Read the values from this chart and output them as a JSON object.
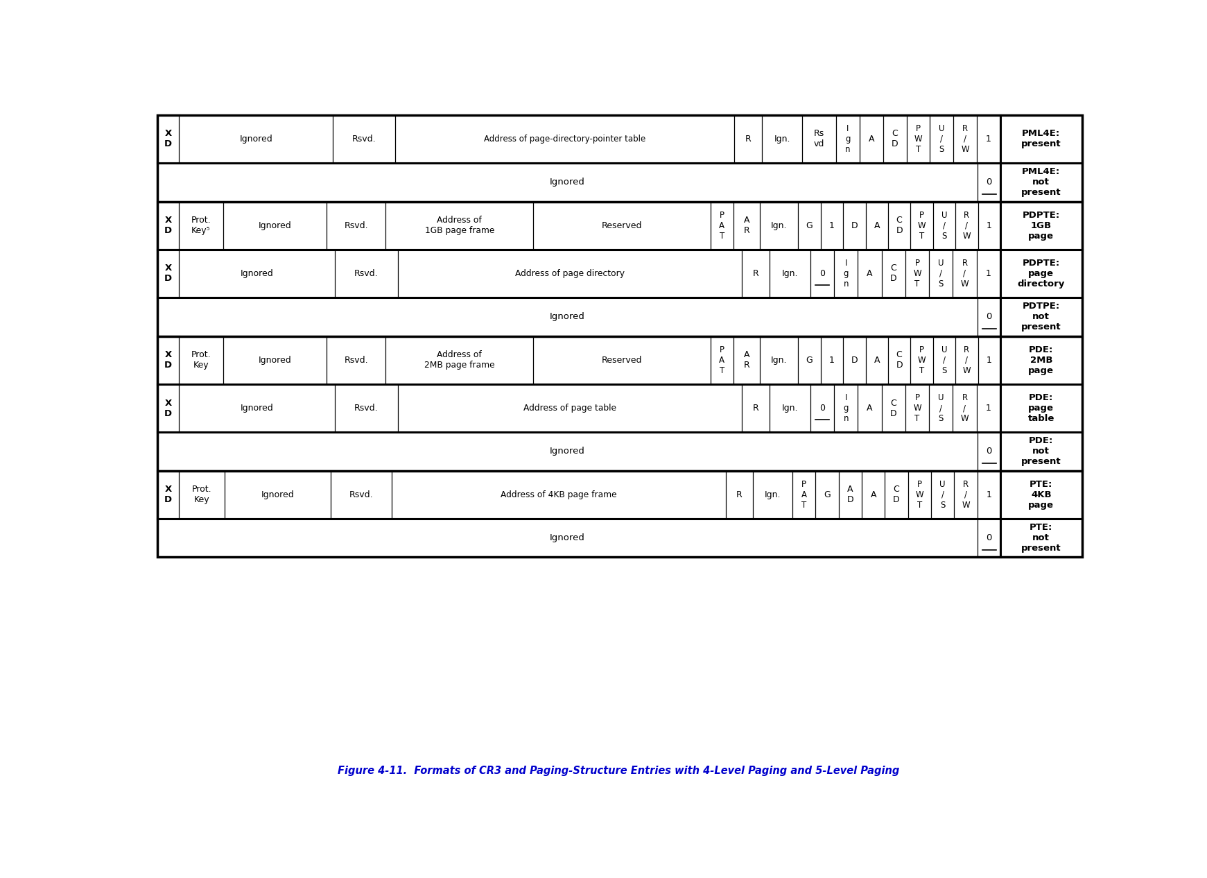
{
  "title": "Figure 4-11.  Formats of CR3 and Paging-Structure Entries with 4-Level Paging and 5-Level Paging",
  "title_color": "#0000CC",
  "bg_color": "#FFFFFF",
  "border_color": "#000000",
  "rows": [
    {
      "type": "present",
      "label": "PML4E:\npresent",
      "has_xd": true,
      "has_protkey": false,
      "cols": [
        {
          "text": "Ignored",
          "span": 2.5
        },
        {
          "text": "Rsvd.",
          "span": 1.0
        },
        {
          "text": "Address of page-directory-pointer table",
          "span": 5.5
        },
        {
          "text": "R",
          "span": 0.45
        },
        {
          "text": "Ign.",
          "span": 0.65
        },
        {
          "text": "Rs\nvd",
          "span": 0.55
        },
        {
          "text": "I\ng\nn",
          "span": 0.38
        },
        {
          "text": "A",
          "span": 0.38
        },
        {
          "text": "C\nD",
          "span": 0.38
        },
        {
          "text": "P\nW\nT",
          "span": 0.38
        },
        {
          "text": "U\n/\nS",
          "span": 0.38
        },
        {
          "text": "R\n/\nW",
          "span": 0.38
        },
        {
          "text": "1",
          "span": 0.38
        }
      ]
    },
    {
      "type": "not_present",
      "label": "PML4E:\nnot\npresent",
      "cols": []
    },
    {
      "type": "present",
      "label": "PDPTE:\n1GB\npage",
      "has_xd": true,
      "has_protkey": true,
      "cols": [
        {
          "text": "Prot.\nKey⁵",
          "span": 0.75
        },
        {
          "text": "Ignored",
          "span": 1.75
        },
        {
          "text": "Rsvd.",
          "span": 1.0
        },
        {
          "text": "Address of\n1GB page frame",
          "span": 2.5
        },
        {
          "text": "Reserved",
          "span": 3.0
        },
        {
          "text": "P\nA\nT",
          "span": 0.38
        },
        {
          "text": "A\nR",
          "span": 0.45
        },
        {
          "text": "Ign.",
          "span": 0.65
        },
        {
          "text": "G",
          "span": 0.38
        },
        {
          "text": "1",
          "span": 0.38
        },
        {
          "text": "D",
          "span": 0.38
        },
        {
          "text": "A",
          "span": 0.38
        },
        {
          "text": "C\nD",
          "span": 0.38
        },
        {
          "text": "P\nW\nT",
          "span": 0.38
        },
        {
          "text": "U\n/\nS",
          "span": 0.38
        },
        {
          "text": "R\n/\nW",
          "span": 0.38
        },
        {
          "text": "1",
          "span": 0.38
        }
      ]
    },
    {
      "type": "present",
      "label": "PDPTE:\npage\ndirectory",
      "has_xd": true,
      "has_protkey": false,
      "cols": [
        {
          "text": "Ignored",
          "span": 2.5
        },
        {
          "text": "Rsvd.",
          "span": 1.0
        },
        {
          "text": "Address of page directory",
          "span": 5.5
        },
        {
          "text": "R",
          "span": 0.45
        },
        {
          "text": "Ign.",
          "span": 0.65
        },
        {
          "text": "0",
          "span": 0.38,
          "underline": true
        },
        {
          "text": "I\ng\nn",
          "span": 0.38
        },
        {
          "text": "A",
          "span": 0.38
        },
        {
          "text": "C\nD",
          "span": 0.38
        },
        {
          "text": "P\nW\nT",
          "span": 0.38
        },
        {
          "text": "U\n/\nS",
          "span": 0.38
        },
        {
          "text": "R\n/\nW",
          "span": 0.38
        },
        {
          "text": "1",
          "span": 0.38
        }
      ]
    },
    {
      "type": "not_present",
      "label": "PDTPE:\nnot\npresent",
      "cols": []
    },
    {
      "type": "present",
      "label": "PDE:\n2MB\npage",
      "has_xd": true,
      "has_protkey": true,
      "cols": [
        {
          "text": "Prot.\nKey",
          "span": 0.75
        },
        {
          "text": "Ignored",
          "span": 1.75
        },
        {
          "text": "Rsvd.",
          "span": 1.0
        },
        {
          "text": "Address of\n2MB page frame",
          "span": 2.5
        },
        {
          "text": "Reserved",
          "span": 3.0
        },
        {
          "text": "P\nA\nT",
          "span": 0.38
        },
        {
          "text": "A\nR",
          "span": 0.45
        },
        {
          "text": "Ign.",
          "span": 0.65
        },
        {
          "text": "G",
          "span": 0.38
        },
        {
          "text": "1",
          "span": 0.38
        },
        {
          "text": "D",
          "span": 0.38
        },
        {
          "text": "A",
          "span": 0.38
        },
        {
          "text": "C\nD",
          "span": 0.38
        },
        {
          "text": "P\nW\nT",
          "span": 0.38
        },
        {
          "text": "U\n/\nS",
          "span": 0.38
        },
        {
          "text": "R\n/\nW",
          "span": 0.38
        },
        {
          "text": "1",
          "span": 0.38
        }
      ]
    },
    {
      "type": "present",
      "label": "PDE:\npage\ntable",
      "has_xd": true,
      "has_protkey": false,
      "cols": [
        {
          "text": "Ignored",
          "span": 2.5
        },
        {
          "text": "Rsvd.",
          "span": 1.0
        },
        {
          "text": "Address of page table",
          "span": 5.5
        },
        {
          "text": "R",
          "span": 0.45
        },
        {
          "text": "Ign.",
          "span": 0.65
        },
        {
          "text": "0",
          "span": 0.38,
          "underline": true
        },
        {
          "text": "I\ng\nn",
          "span": 0.38
        },
        {
          "text": "A",
          "span": 0.38
        },
        {
          "text": "C\nD",
          "span": 0.38
        },
        {
          "text": "P\nW\nT",
          "span": 0.38
        },
        {
          "text": "U\n/\nS",
          "span": 0.38
        },
        {
          "text": "R\n/\nW",
          "span": 0.38
        },
        {
          "text": "1",
          "span": 0.38
        }
      ]
    },
    {
      "type": "not_present",
      "label": "PDE:\nnot\npresent",
      "cols": []
    },
    {
      "type": "present",
      "label": "PTE:\n4KB\npage",
      "has_xd": true,
      "has_protkey": true,
      "cols": [
        {
          "text": "Prot.\nKey",
          "span": 0.75
        },
        {
          "text": "Ignored",
          "span": 1.75
        },
        {
          "text": "Rsvd.",
          "span": 1.0
        },
        {
          "text": "Address of 4KB page frame",
          "span": 5.5
        },
        {
          "text": "R",
          "span": 0.45
        },
        {
          "text": "Ign.",
          "span": 0.65
        },
        {
          "text": "P\nA\nT",
          "span": 0.38
        },
        {
          "text": "G",
          "span": 0.38
        },
        {
          "text": "A\nD",
          "span": 0.38
        },
        {
          "text": "A",
          "span": 0.38
        },
        {
          "text": "C\nD",
          "span": 0.38
        },
        {
          "text": "P\nW\nT",
          "span": 0.38
        },
        {
          "text": "U\n/\nS",
          "span": 0.38
        },
        {
          "text": "R\n/\nW",
          "span": 0.38
        },
        {
          "text": "1",
          "span": 0.38
        }
      ]
    },
    {
      "type": "not_present",
      "label": "PTE:\nnot\npresent",
      "cols": []
    }
  ]
}
